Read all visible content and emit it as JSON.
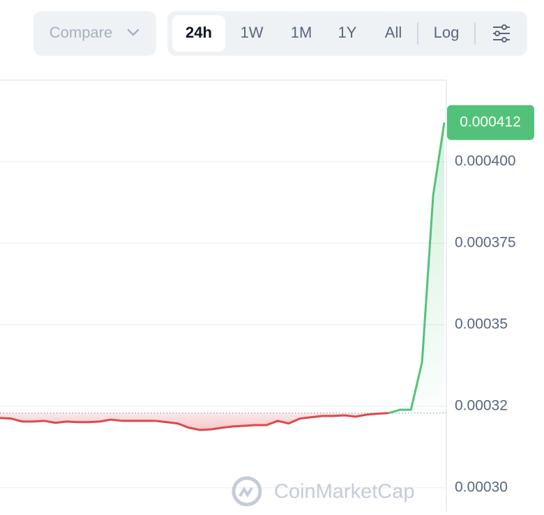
{
  "controls": {
    "compare": "Compare",
    "ranges": [
      "24h",
      "1W",
      "1M",
      "1Y",
      "All"
    ],
    "active_index": 0,
    "log": "Log"
  },
  "chart_data": {
    "type": "line",
    "values": [
      0.0003214,
      0.0003212,
      0.0003203,
      0.0003203,
      0.0003205,
      0.0003199,
      0.0003203,
      0.0003201,
      0.0003201,
      0.0003203,
      0.0003209,
      0.0003205,
      0.0003205,
      0.0003205,
      0.0003205,
      0.0003201,
      0.0003197,
      0.0003184,
      0.0003177,
      0.0003179,
      0.0003184,
      0.0003188,
      0.000319,
      0.0003192,
      0.0003192,
      0.0003205,
      0.0003197,
      0.0003212,
      0.0003216,
      0.000322,
      0.000322,
      0.0003222,
      0.0003218,
      0.0003224,
      0.0003227,
      0.0003229,
      0.0003239,
      0.0003239,
      0.0003385,
      0.0003897,
      0.000412
    ],
    "baseline": 0.0003229,
    "up_color": "#52c27a",
    "down_color": "#e0474a",
    "ylim": [
      0.0002927,
      0.000425
    ],
    "yticks": [
      {
        "value": 0.0003,
        "label": "0.00030"
      },
      {
        "value": 0.000325,
        "label": "0.00032"
      },
      0.00035,
      0.000375,
      {
        "value": 0.0004,
        "label": "0.000400"
      }
    ],
    "grid": true,
    "current_price": 0.000412,
    "watermark": "CoinMarketCap"
  }
}
